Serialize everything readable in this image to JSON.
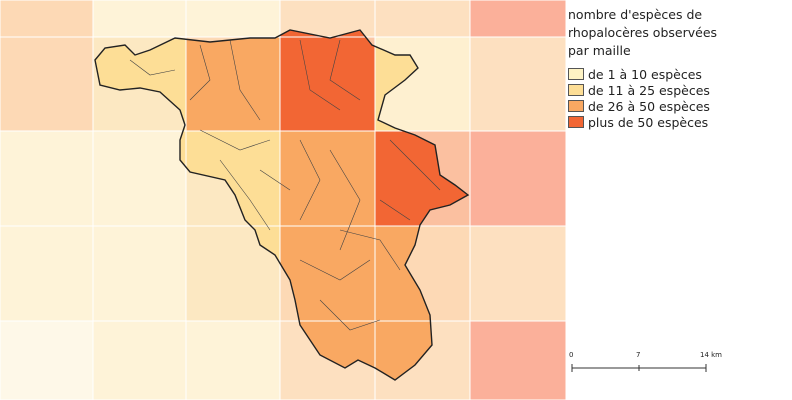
{
  "legend": {
    "title": "nombre d'espèces de rhopalocères observées par maille",
    "items": [
      {
        "label": "de 1 à 10 espèces",
        "color": "#fef3c4"
      },
      {
        "label": "de 11 à 25 espèces",
        "color": "#fdde96"
      },
      {
        "label": "de 26 à 50 espèces",
        "color": "#f9a862"
      },
      {
        "label": "plus de 50 espèces",
        "color": "#f26634"
      }
    ]
  },
  "scale_bar": {
    "labels": [
      "0",
      "7",
      "14 km"
    ]
  }
}
